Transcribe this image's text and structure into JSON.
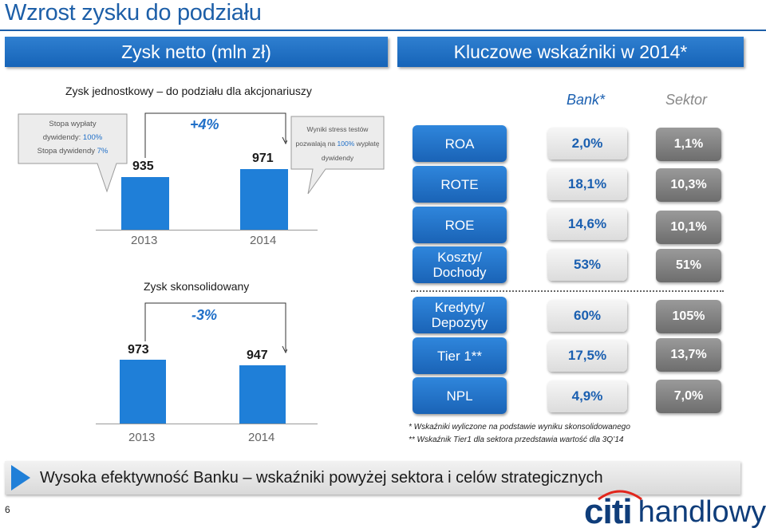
{
  "title": "Wzrost zysku do podziału",
  "banners": {
    "left": "Zysk netto (mln zł)",
    "right": "Kluczowe wskaźniki w 2014*"
  },
  "standalone": {
    "heading": "Zysk jednostkowy – do podziału dla akcjonariuszy",
    "change": "+4%",
    "values": [
      "935",
      "971"
    ],
    "years": [
      "2013",
      "2014"
    ],
    "callout_left": {
      "line1": "Stopa wypłaty",
      "line2_text": "dywidendy: ",
      "line2_val": "100%",
      "line3_text": "Stopa dywidendy ",
      "line3_val": "7%"
    },
    "callout_right": {
      "line1": "Wyniki stress testów",
      "line2_text": "pozwalają na ",
      "line2_val": "100%",
      "line2_end": " wypłatę",
      "line3": "dywidendy"
    }
  },
  "consolidated": {
    "heading": "Zysk skonsolidowany",
    "change": "-3%",
    "values": [
      "973",
      "947"
    ],
    "years": [
      "2013",
      "2014"
    ]
  },
  "kpi": {
    "col_bank": "Bank*",
    "col_sector": "Sektor",
    "rows": [
      {
        "label": "ROA",
        "bank": "2,0%",
        "sector": "1,1%"
      },
      {
        "label": "ROTE",
        "bank": "18,1%",
        "sector": "10,3%"
      },
      {
        "label": "ROE",
        "bank": "14,6%",
        "sector": "10,1%"
      },
      {
        "label": "Koszty/ Dochody",
        "bank": "53%",
        "sector": "51%"
      },
      {
        "label": "Kredyty/ Depozyty",
        "bank": "60%",
        "sector": "105%"
      },
      {
        "label": "Tier 1**",
        "bank": "17,5%",
        "sector": "13,7%"
      },
      {
        "label": "NPL",
        "bank": "4,9%",
        "sector": "7,0%"
      }
    ],
    "footnote1": "* Wskaźniki wyliczone na podstawie wyniku skonsolidowanego",
    "footnote2": "** Wskaźnik Tier1 dla sektora przedstawia wartość dla 3Q’14"
  },
  "bottom_message": "Wysoka efektywność Banku – wskaźniki powyżej sektora i celów strategicznych",
  "page_number": "6",
  "logo": {
    "citi": "citi",
    "handlowy": "handlowy"
  },
  "colors": {
    "accent": "#1f7fd8",
    "brand_red": "#e1261c",
    "sector_gray": "#7d7d7d"
  }
}
